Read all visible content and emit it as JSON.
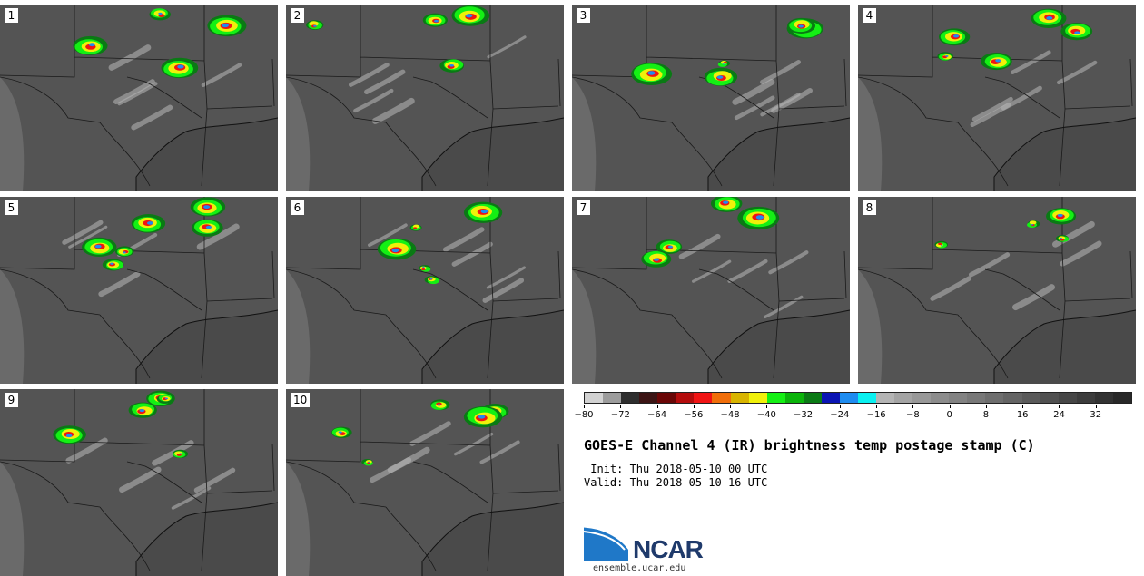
{
  "panels": [
    {
      "label": "1"
    },
    {
      "label": "2"
    },
    {
      "label": "3"
    },
    {
      "label": "4"
    },
    {
      "label": "5"
    },
    {
      "label": "6"
    },
    {
      "label": "7"
    },
    {
      "label": "8"
    },
    {
      "label": "9"
    },
    {
      "label": "10"
    }
  ],
  "colorbar": {
    "colors": [
      "#d2d2d2",
      "#9c9c9c",
      "#2e2e2e",
      "#3c1414",
      "#6a0606",
      "#b40c0c",
      "#f01414",
      "#f06e0a",
      "#d8b400",
      "#f0f00a",
      "#14f014",
      "#0ab40a",
      "#0a7a14",
      "#0a14b4",
      "#1e8cf0",
      "#0af0f0",
      "#b4b4b4",
      "#a4a4a4",
      "#989898",
      "#8c8c8c",
      "#828282",
      "#787878",
      "#6e6e6e",
      "#646464",
      "#5a5a5a",
      "#505050",
      "#464646",
      "#3c3c3c",
      "#323232",
      "#282828"
    ],
    "ticks": [
      "−80",
      "−72",
      "−64",
      "−56",
      "−48",
      "−40",
      "−32",
      "−24",
      "−16",
      "−8",
      "0",
      "8",
      "16",
      "24",
      "32"
    ],
    "range": [
      -80,
      40
    ]
  },
  "title": "GOES-E Channel 4 (IR) brightness temp postage stamp (C)",
  "init": " Init: Thu 2018-05-10 00 UTC",
  "valid": "Valid: Thu 2018-05-10 16 UTC",
  "logo": {
    "text": "NCAR"
  },
  "url": "ensemble.ucar.edu"
}
